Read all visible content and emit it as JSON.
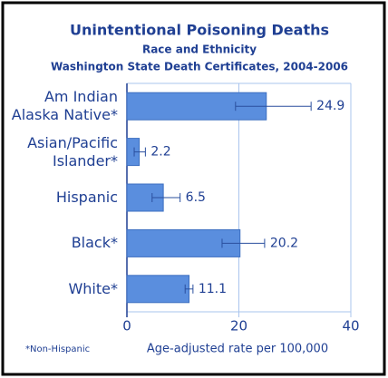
{
  "chart_data": {
    "type": "bar",
    "orientation": "horizontal",
    "title": "Unintentional Poisoning Deaths",
    "subtitles": [
      "Race and Ethnicity",
      "Washington State Death Certificates, 2004-2006"
    ],
    "categories": [
      "Am Indian Alaska Native*",
      "Asian/Pacific Islander*",
      "Hispanic",
      "Black*",
      "White*"
    ],
    "values": [
      24.9,
      2.2,
      6.5,
      20.2,
      11.1
    ],
    "lower": [
      19.4,
      1.3,
      4.5,
      17.0,
      10.4
    ],
    "upper": [
      32.9,
      3.3,
      9.5,
      24.6,
      11.8
    ],
    "color": "#5a8ede",
    "xlim": [
      0,
      40
    ],
    "xticks": [
      0,
      20,
      40
    ],
    "grid": true,
    "xlabel": "Age-adjusted rate per 100,000",
    "footnote": "*Non-Hispanic"
  }
}
